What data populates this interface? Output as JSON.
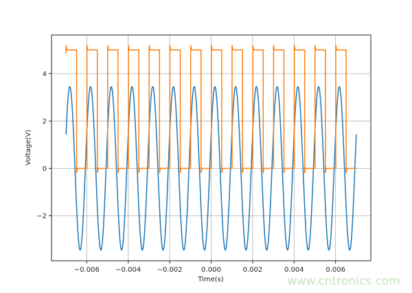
{
  "chart_data": {
    "type": "line",
    "xlabel": "Time(s)",
    "ylabel": "Voltage(V)",
    "xlim": [
      -0.0077,
      0.0077
    ],
    "ylim": [
      -3.9,
      5.63
    ],
    "grid": true,
    "xticks": [
      -0.006,
      -0.004,
      -0.002,
      0.0,
      0.002,
      0.004,
      0.006
    ],
    "xtick_labels": [
      "−0.006",
      "−0.004",
      "−0.002",
      "0.000",
      "0.002",
      "0.004",
      "0.006"
    ],
    "yticks": [
      -2,
      0,
      2,
      4
    ],
    "ytick_labels": [
      "−2",
      "0",
      "2",
      "4"
    ],
    "series": [
      {
        "kind": "sine",
        "color": "#1f77b4",
        "x_range": [
          -0.007,
          0.007
        ],
        "amplitude": 3.45,
        "frequency_hz": 1000,
        "phase_rad": 0.427
      },
      {
        "kind": "square",
        "color": "#ff7f0e",
        "x_range": [
          -0.007,
          0.007
        ],
        "start_value": 4.85,
        "high": 5.0,
        "low": 0.0,
        "overshoot": 5.2,
        "undershoot": -0.2,
        "rise_times": [
          -0.00599,
          -0.00499,
          -0.00399,
          -0.00299,
          -0.00199,
          -0.00099,
          1e-05,
          0.00101,
          0.00201,
          0.00301,
          0.00401,
          0.00501,
          0.00601
        ],
        "fall_times": [
          -0.00649,
          -0.00549,
          -0.00449,
          -0.00349,
          -0.00249,
          -0.00149,
          -0.00049,
          0.00051,
          0.00151,
          0.00251,
          0.00351,
          0.00451,
          0.00551,
          0.00651
        ]
      }
    ]
  },
  "watermark": "www.cntronics.com"
}
